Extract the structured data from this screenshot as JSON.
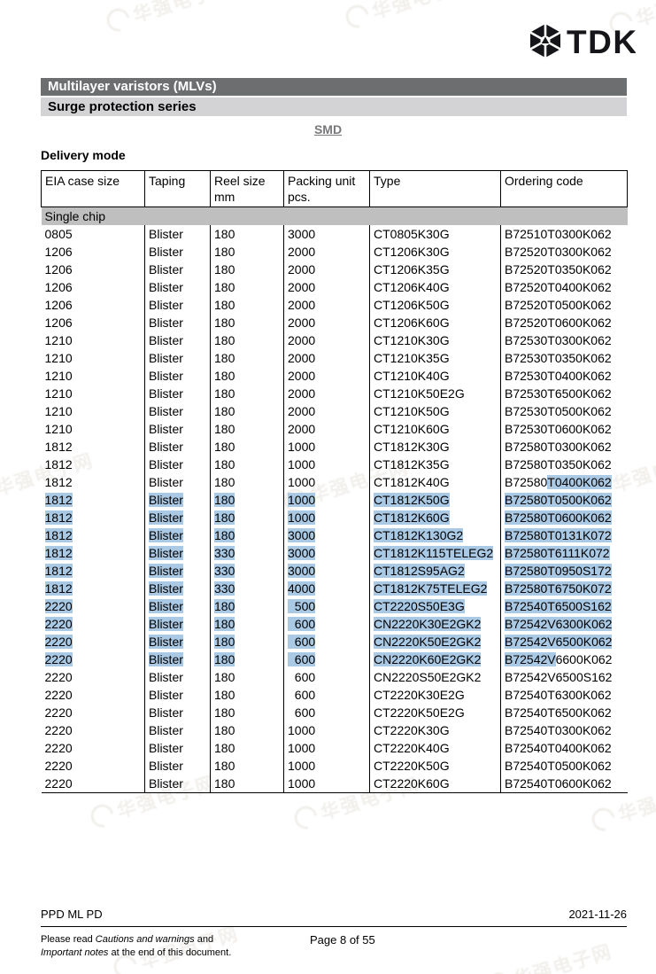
{
  "logo": {
    "text": "TDK",
    "emblem_icon": "tdk-hexagon-emblem"
  },
  "banners": {
    "primary": "Multilayer varistors (MLVs)",
    "secondary": "Surge protection series"
  },
  "doc": {
    "category_link": "SMD",
    "section_title": "Delivery mode"
  },
  "table": {
    "columns": [
      {
        "line1": "EIA case size",
        "line2": ""
      },
      {
        "line1": "Taping",
        "line2": ""
      },
      {
        "line1": "Reel size",
        "line2": "mm"
      },
      {
        "line1": "Packing unit",
        "line2": "pcs."
      },
      {
        "line1": "Type",
        "line2": ""
      },
      {
        "line1": "Ordering code",
        "line2": ""
      }
    ],
    "group_header": "Single chip",
    "rows": [
      {
        "sel": false,
        "cells": [
          "0805",
          "Blister",
          "180",
          "3000",
          "CT0805K30G",
          "B72510T0300K062"
        ]
      },
      {
        "sel": false,
        "cells": [
          "1206",
          "Blister",
          "180",
          "2000",
          "CT1206K30G",
          "B72520T0300K062"
        ]
      },
      {
        "sel": false,
        "cells": [
          "1206",
          "Blister",
          "180",
          "2000",
          "CT1206K35G",
          "B72520T0350K062"
        ]
      },
      {
        "sel": false,
        "cells": [
          "1206",
          "Blister",
          "180",
          "2000",
          "CT1206K40G",
          "B72520T0400K062"
        ]
      },
      {
        "sel": false,
        "cells": [
          "1206",
          "Blister",
          "180",
          "2000",
          "CT1206K50G",
          "B72520T0500K062"
        ]
      },
      {
        "sel": false,
        "cells": [
          "1206",
          "Blister",
          "180",
          "2000",
          "CT1206K60G",
          "B72520T0600K062"
        ]
      },
      {
        "sel": false,
        "cells": [
          "1210",
          "Blister",
          "180",
          "2000",
          "CT1210K30G",
          "B72530T0300K062"
        ]
      },
      {
        "sel": false,
        "cells": [
          "1210",
          "Blister",
          "180",
          "2000",
          "CT1210K35G",
          "B72530T0350K062"
        ]
      },
      {
        "sel": false,
        "cells": [
          "1210",
          "Blister",
          "180",
          "2000",
          "CT1210K40G",
          "B72530T0400K062"
        ]
      },
      {
        "sel": false,
        "cells": [
          "1210",
          "Blister",
          "180",
          "2000",
          "CT1210K50E2G",
          "B72530T6500K062"
        ]
      },
      {
        "sel": false,
        "cells": [
          "1210",
          "Blister",
          "180",
          "2000",
          "CT1210K50G",
          "B72530T0500K062"
        ]
      },
      {
        "sel": false,
        "cells": [
          "1210",
          "Blister",
          "180",
          "2000",
          "CT1210K60G",
          "B72530T0600K062"
        ]
      },
      {
        "sel": false,
        "cells": [
          "1812",
          "Blister",
          "180",
          "1000",
          "CT1812K30G",
          "B72580T0300K062"
        ]
      },
      {
        "sel": false,
        "cells": [
          "1812",
          "Blister",
          "180",
          "1000",
          "CT1812K35G",
          "B72580T0350K062"
        ]
      },
      {
        "sel": false,
        "cells": [
          "1812",
          "Blister",
          "180",
          "1000",
          "CT1812K40G",
          [
            {
              "t": "B72580",
              "s": false
            },
            {
              "t": "T0400K062",
              "s": true
            }
          ]
        ]
      },
      {
        "sel": true,
        "cells": [
          "1812",
          "Blister",
          "180",
          "1000",
          "CT1812K50G",
          "B72580T0500K062"
        ]
      },
      {
        "sel": true,
        "cells": [
          "1812",
          "Blister",
          "180",
          "1000",
          "CT1812K60G",
          "B72580T0600K062"
        ]
      },
      {
        "sel": true,
        "cells": [
          "1812",
          "Blister",
          "180",
          "3000",
          "CT1812K130G2",
          "B72580T0131K072"
        ]
      },
      {
        "sel": true,
        "cells": [
          "1812",
          "Blister",
          "330",
          "3000",
          "CT1812K115TELEG2",
          "B72580T6111K072"
        ]
      },
      {
        "sel": true,
        "cells": [
          "1812",
          "Blister",
          "330",
          "3000",
          "CT1812S95AG2",
          "B72580T0950S172"
        ]
      },
      {
        "sel": true,
        "cells": [
          "1812",
          "Blister",
          "330",
          "4000",
          "CT1812K75TELEG2",
          "B72580T6750K072"
        ]
      },
      {
        "sel": true,
        "cells": [
          "2220",
          "Blister",
          "180",
          "  500",
          "CT2220S50E3G",
          "B72540T6500S162"
        ]
      },
      {
        "sel": true,
        "cells": [
          "2220",
          "Blister",
          "180",
          "  600",
          "CN2220K30E2GK2",
          "B72542V6300K062"
        ]
      },
      {
        "sel": true,
        "cells": [
          "2220",
          "Blister",
          "180",
          "  600",
          "CN2220K50E2GK2",
          "B72542V6500K062"
        ]
      },
      {
        "sel": true,
        "cells": [
          "2220",
          "Blister",
          "180",
          "  600",
          "CN2220K60E2GK2",
          [
            {
              "t": "B72542V",
              "s": true
            },
            {
              "t": "6600K062",
              "s": false
            }
          ]
        ]
      },
      {
        "sel": false,
        "cells": [
          "2220",
          "Blister",
          "180",
          "  600",
          "CN2220S50E2GK2",
          "B72542V6500S162"
        ]
      },
      {
        "sel": false,
        "cells": [
          "2220",
          "Blister",
          "180",
          "  600",
          "CT2220K30E2G",
          "B72540T6300K062"
        ]
      },
      {
        "sel": false,
        "cells": [
          "2220",
          "Blister",
          "180",
          "  600",
          "CT2220K50E2G",
          "B72540T6500K062"
        ]
      },
      {
        "sel": false,
        "cells": [
          "2220",
          "Blister",
          "180",
          "1000",
          "CT2220K30G",
          "B72540T0300K062"
        ]
      },
      {
        "sel": false,
        "cells": [
          "2220",
          "Blister",
          "180",
          "1000",
          "CT2220K40G",
          "B72540T0400K062"
        ]
      },
      {
        "sel": false,
        "cells": [
          "2220",
          "Blister",
          "180",
          "1000",
          "CT2220K50G",
          "B72540T0500K062"
        ]
      },
      {
        "sel": false,
        "cells": [
          "2220",
          "Blister",
          "180",
          "1000",
          "CT2220K60G",
          "B72540T0600K062"
        ]
      }
    ]
  },
  "footer": {
    "dept": "PPD ML PD",
    "date": "2021-11-26",
    "note": {
      "p1": "Please read ",
      "p2": "Cautions and warnings",
      "p3": " and",
      "p4": "Important notes",
      "p5": " at the end of this document."
    },
    "page_indicator": "Page 8 of 55"
  },
  "watermark": {
    "text": "华强电子网"
  },
  "colors": {
    "selection_highlight": "#aac9e5",
    "banner_primary_bg": "#6d6e70",
    "banner_secondary_bg": "#d3d3d5",
    "group_row_bg": "#bfbfbf"
  }
}
